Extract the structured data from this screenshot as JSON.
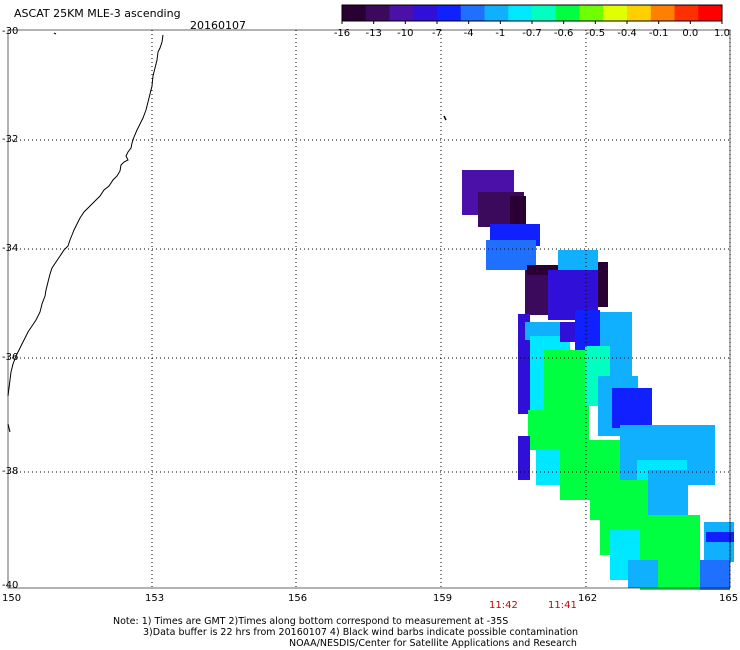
{
  "header": {
    "title": "ASCAT 25KM MLE-3 ascending",
    "date": "20160107"
  },
  "colorbar": {
    "labels": [
      "-16",
      "-13",
      "-10",
      "-7",
      "-4",
      "-1",
      "-0.7",
      "-0.6",
      "-0.5",
      "-0.4",
      "-0.1",
      "0.0",
      "1.0"
    ],
    "colors": [
      "#2a0034",
      "#3c0a5c",
      "#4a10a8",
      "#3010d8",
      "#1020ff",
      "#2070ff",
      "#10b0ff",
      "#00e8ff",
      "#00ffc0",
      "#00ff40",
      "#70ff00",
      "#e0ff00",
      "#ffd000",
      "#ff8000",
      "#ff3000",
      "#ff0000"
    ]
  },
  "map": {
    "lat_labels": [
      "-30",
      "-32",
      "-34",
      "-36",
      "-38",
      "-40"
    ],
    "lon_labels": [
      "150",
      "153",
      "156",
      "159",
      "162",
      "165"
    ],
    "lat_range": [
      -40,
      -30
    ],
    "lon_range": [
      150,
      165
    ]
  },
  "pass_times": [
    "11:42",
    "11:41"
  ],
  "note": {
    "line1": "Note: 1) Times are GMT 2)Times along bottom correspond to measurement at -35S",
    "line2": "3)Data buffer is 22 hrs from 20160107 4) Black wind barbs indicate possible contamination",
    "line3": "NOAA/NESDIS/Center for Satellite Applications and Research"
  }
}
